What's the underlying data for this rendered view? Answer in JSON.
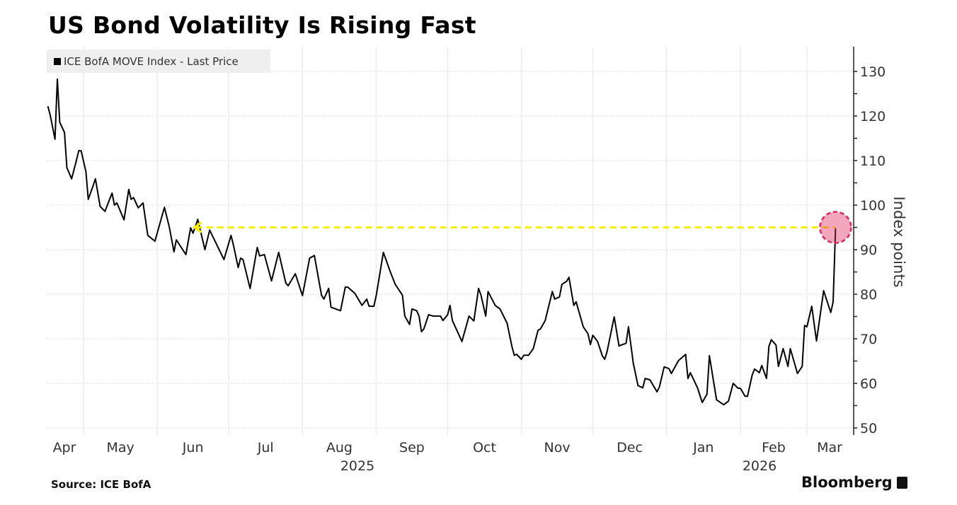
{
  "title": "US Bond Volatility Is Rising Fast",
  "source": "Source: ICE BofA",
  "brand": "Bloomberg",
  "chart_data": {
    "type": "line",
    "title": "US Bond Volatility Is Rising Fast",
    "ylabel": "Index points",
    "ylim": [
      50,
      130
    ],
    "yticks": [
      50,
      60,
      70,
      80,
      90,
      100,
      110,
      120,
      130
    ],
    "y_axis_side": "right",
    "grid": true,
    "legend_placement": "top-left",
    "x_month_labels": [
      "Apr",
      "May",
      "Jun",
      "Jul",
      "Aug",
      "Sep",
      "Oct",
      "Nov",
      "Dec",
      "Jan",
      "Feb",
      "Mar"
    ],
    "x_year_labels": [
      "2025",
      "2026"
    ],
    "colors": {
      "line": "#000000",
      "reference": "#f5f000",
      "highlight": "#e0245e"
    },
    "annotation": {
      "type": "dashed-arrow",
      "level": 95,
      "from": "2025-06-16",
      "to": "2026-03-13",
      "highlight_point": "2026-03-13"
    },
    "series": [
      {
        "name": "ICE BofA MOVE Index - Last Price",
        "points": [
          [
            "2025-04-16",
            122.2
          ],
          [
            "2025-04-17",
            120.2
          ],
          [
            "2025-04-19",
            114.8
          ],
          [
            "2025-04-20",
            128.3
          ],
          [
            "2025-04-21",
            118.6
          ],
          [
            "2025-04-23",
            116.3
          ],
          [
            "2025-04-24",
            108.4
          ],
          [
            "2025-04-26",
            105.9
          ],
          [
            "2025-04-28",
            110.0
          ],
          [
            "2025-04-29",
            112.2
          ],
          [
            "2025-04-30",
            112.2
          ],
          [
            "2025-05-02",
            107.5
          ],
          [
            "2025-05-03",
            101.3
          ],
          [
            "2025-05-05",
            104.3
          ],
          [
            "2025-05-06",
            105.9
          ],
          [
            "2025-05-08",
            99.7
          ],
          [
            "2025-05-10",
            98.6
          ],
          [
            "2025-05-13",
            102.7
          ],
          [
            "2025-05-14",
            100.0
          ],
          [
            "2025-05-15",
            100.5
          ],
          [
            "2025-05-18",
            96.7
          ],
          [
            "2025-05-20",
            103.5
          ],
          [
            "2025-05-21",
            101.3
          ],
          [
            "2025-05-22",
            101.7
          ],
          [
            "2025-05-24",
            99.4
          ],
          [
            "2025-05-26",
            100.5
          ],
          [
            "2025-05-28",
            93.2
          ],
          [
            "2025-05-31",
            91.9
          ],
          [
            "2025-06-04",
            99.5
          ],
          [
            "2025-06-06",
            95.2
          ],
          [
            "2025-06-08",
            89.5
          ],
          [
            "2025-06-09",
            92.2
          ],
          [
            "2025-06-13",
            88.9
          ],
          [
            "2025-06-15",
            94.9
          ],
          [
            "2025-06-16",
            93.7
          ],
          [
            "2025-06-18",
            96.8
          ],
          [
            "2025-06-21",
            90.0
          ],
          [
            "2025-06-23",
            94.4
          ],
          [
            "2025-06-29",
            87.8
          ],
          [
            "2025-07-02",
            93.2
          ],
          [
            "2025-07-03",
            91.0
          ],
          [
            "2025-07-05",
            86.0
          ],
          [
            "2025-07-06",
            88.1
          ],
          [
            "2025-07-07",
            87.8
          ],
          [
            "2025-07-10",
            81.3
          ],
          [
            "2025-07-13",
            90.5
          ],
          [
            "2025-07-14",
            88.6
          ],
          [
            "2025-07-16",
            88.9
          ],
          [
            "2025-07-19",
            83.0
          ],
          [
            "2025-07-22",
            89.4
          ],
          [
            "2025-07-25",
            82.5
          ],
          [
            "2025-07-26",
            81.9
          ],
          [
            "2025-07-29",
            84.6
          ],
          [
            "2025-08-01",
            79.7
          ],
          [
            "2025-08-04",
            88.1
          ],
          [
            "2025-08-06",
            88.7
          ],
          [
            "2025-08-09",
            79.8
          ],
          [
            "2025-08-10",
            78.9
          ],
          [
            "2025-08-12",
            81.3
          ],
          [
            "2025-08-13",
            77.1
          ],
          [
            "2025-08-17",
            76.3
          ],
          [
            "2025-08-19",
            81.6
          ],
          [
            "2025-08-20",
            81.6
          ],
          [
            "2025-08-23",
            80.2
          ],
          [
            "2025-08-26",
            77.5
          ],
          [
            "2025-08-28",
            78.9
          ],
          [
            "2025-08-29",
            77.3
          ],
          [
            "2025-08-31",
            77.3
          ],
          [
            "2025-09-01",
            79.7
          ],
          [
            "2025-09-04",
            89.4
          ],
          [
            "2025-09-07",
            84.9
          ],
          [
            "2025-09-09",
            82.2
          ],
          [
            "2025-09-12",
            79.8
          ],
          [
            "2025-09-13",
            75.1
          ],
          [
            "2025-09-15",
            73.2
          ],
          [
            "2025-09-16",
            76.7
          ],
          [
            "2025-09-18",
            76.3
          ],
          [
            "2025-09-19",
            75.1
          ],
          [
            "2025-09-20",
            71.6
          ],
          [
            "2025-09-21",
            72.2
          ],
          [
            "2025-09-23",
            75.4
          ],
          [
            "2025-09-25",
            75.1
          ],
          [
            "2025-09-28",
            75.1
          ],
          [
            "2025-09-29",
            74.1
          ],
          [
            "2025-10-01",
            75.4
          ],
          [
            "2025-10-02",
            77.5
          ],
          [
            "2025-10-03",
            74.1
          ],
          [
            "2025-10-07",
            69.4
          ],
          [
            "2025-10-10",
            75.1
          ],
          [
            "2025-10-12",
            74.0
          ],
          [
            "2025-10-14",
            81.3
          ],
          [
            "2025-10-15",
            79.8
          ],
          [
            "2025-10-17",
            75.1
          ],
          [
            "2025-10-18",
            80.6
          ],
          [
            "2025-10-21",
            77.5
          ],
          [
            "2025-10-23",
            76.7
          ],
          [
            "2025-10-26",
            73.5
          ],
          [
            "2025-10-28",
            68.3
          ],
          [
            "2025-10-29",
            66.3
          ],
          [
            "2025-10-30",
            66.5
          ],
          [
            "2025-11-01",
            65.4
          ],
          [
            "2025-11-02",
            66.3
          ],
          [
            "2025-11-04",
            66.3
          ],
          [
            "2025-11-06",
            67.8
          ],
          [
            "2025-11-08",
            71.9
          ],
          [
            "2025-11-09",
            72.2
          ],
          [
            "2025-11-11",
            74.1
          ],
          [
            "2025-11-14",
            80.6
          ],
          [
            "2025-11-15",
            78.9
          ],
          [
            "2025-11-17",
            79.4
          ],
          [
            "2025-11-18",
            82.2
          ],
          [
            "2025-11-20",
            82.9
          ],
          [
            "2025-11-21",
            83.8
          ],
          [
            "2025-11-23",
            77.5
          ],
          [
            "2025-11-24",
            78.3
          ],
          [
            "2025-11-27",
            72.7
          ],
          [
            "2025-11-29",
            71.1
          ],
          [
            "2025-11-30",
            68.7
          ],
          [
            "2025-12-01",
            70.8
          ],
          [
            "2025-12-03",
            69.4
          ],
          [
            "2025-12-05",
            66.2
          ],
          [
            "2025-12-06",
            65.4
          ],
          [
            "2025-12-07",
            67.1
          ],
          [
            "2025-12-10",
            74.9
          ],
          [
            "2025-12-12",
            68.4
          ],
          [
            "2025-12-15",
            69.0
          ],
          [
            "2025-12-16",
            72.7
          ],
          [
            "2025-12-18",
            64.6
          ],
          [
            "2025-12-20",
            59.5
          ],
          [
            "2025-12-22",
            59.0
          ],
          [
            "2025-12-23",
            61.1
          ],
          [
            "2025-12-25",
            60.8
          ],
          [
            "2025-12-28",
            58.1
          ],
          [
            "2025-12-29",
            59.2
          ],
          [
            "2025-12-31",
            63.7
          ],
          [
            "2026-01-02",
            63.3
          ],
          [
            "2026-01-03",
            62.2
          ],
          [
            "2026-01-06",
            65.1
          ],
          [
            "2026-01-09",
            66.5
          ],
          [
            "2026-01-10",
            61.1
          ],
          [
            "2026-01-11",
            62.4
          ],
          [
            "2026-01-14",
            59.0
          ],
          [
            "2026-01-16",
            55.7
          ],
          [
            "2026-01-18",
            57.6
          ],
          [
            "2026-01-19",
            66.2
          ],
          [
            "2026-01-22",
            56.3
          ],
          [
            "2026-01-25",
            55.2
          ],
          [
            "2026-01-27",
            56.0
          ],
          [
            "2026-01-29",
            60.0
          ],
          [
            "2026-01-31",
            58.9
          ],
          [
            "2026-02-01",
            58.9
          ],
          [
            "2026-02-03",
            57.1
          ],
          [
            "2026-02-04",
            57.1
          ],
          [
            "2026-02-06",
            61.9
          ],
          [
            "2026-02-07",
            63.2
          ],
          [
            "2026-02-09",
            62.4
          ],
          [
            "2026-02-10",
            64.0
          ],
          [
            "2026-02-12",
            61.1
          ],
          [
            "2026-02-13",
            68.3
          ],
          [
            "2026-02-14",
            69.8
          ],
          [
            "2026-02-16",
            68.6
          ],
          [
            "2026-02-17",
            63.8
          ],
          [
            "2026-02-19",
            67.8
          ],
          [
            "2026-02-21",
            63.8
          ],
          [
            "2026-02-22",
            67.8
          ],
          [
            "2026-02-25",
            62.2
          ],
          [
            "2026-02-27",
            63.8
          ],
          [
            "2026-02-28",
            73.0
          ],
          [
            "2026-03-01",
            72.7
          ],
          [
            "2026-03-03",
            77.3
          ],
          [
            "2026-03-05",
            69.5
          ],
          [
            "2026-03-08",
            80.8
          ],
          [
            "2026-03-11",
            75.9
          ],
          [
            "2026-03-12",
            78.3
          ],
          [
            "2026-03-13",
            94.8
          ]
        ]
      }
    ]
  }
}
